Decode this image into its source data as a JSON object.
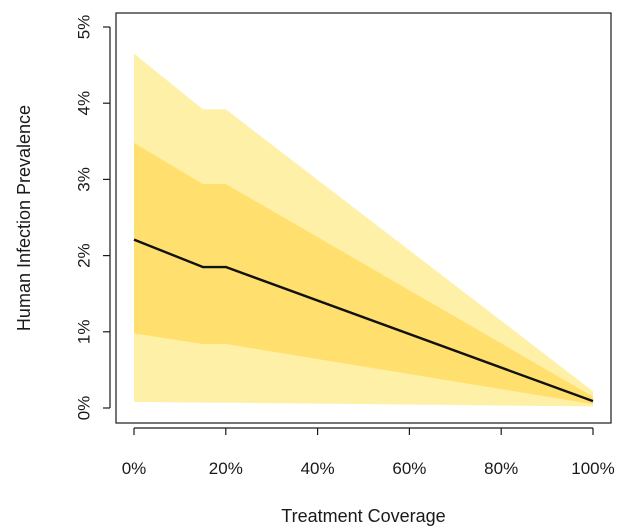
{
  "chart_data": {
    "type": "area",
    "title": "",
    "xlabel": "Treatment Coverage",
    "ylabel": "Human Infection Prevalence",
    "x": [
      0,
      15,
      20,
      100
    ],
    "xlim": [
      0,
      100
    ],
    "ylim": [
      0,
      5
    ],
    "x_ticks": [
      0,
      20,
      40,
      60,
      80,
      100
    ],
    "x_tick_labels": [
      "0%",
      "20%",
      "40%",
      "60%",
      "80%",
      "100%"
    ],
    "y_ticks": [
      0,
      1,
      2,
      3,
      4,
      5
    ],
    "y_tick_labels": [
      "0%",
      "1%",
      "2%",
      "3%",
      "4%",
      "5%"
    ],
    "grid": false,
    "legend": "none",
    "bands": [
      {
        "lower": [
          0.08,
          0.07,
          0.07,
          0.02
        ],
        "upper": [
          4.65,
          3.92,
          3.92,
          0.22
        ],
        "color": "#fff0a8"
      },
      {
        "lower": [
          0.98,
          0.84,
          0.84,
          0.05
        ],
        "upper": [
          3.48,
          2.94,
          2.94,
          0.15
        ],
        "color": "#ffe06e"
      }
    ],
    "series": [
      {
        "values": [
          2.21,
          1.85,
          1.85,
          0.09
        ],
        "color": "#111111"
      }
    ]
  }
}
